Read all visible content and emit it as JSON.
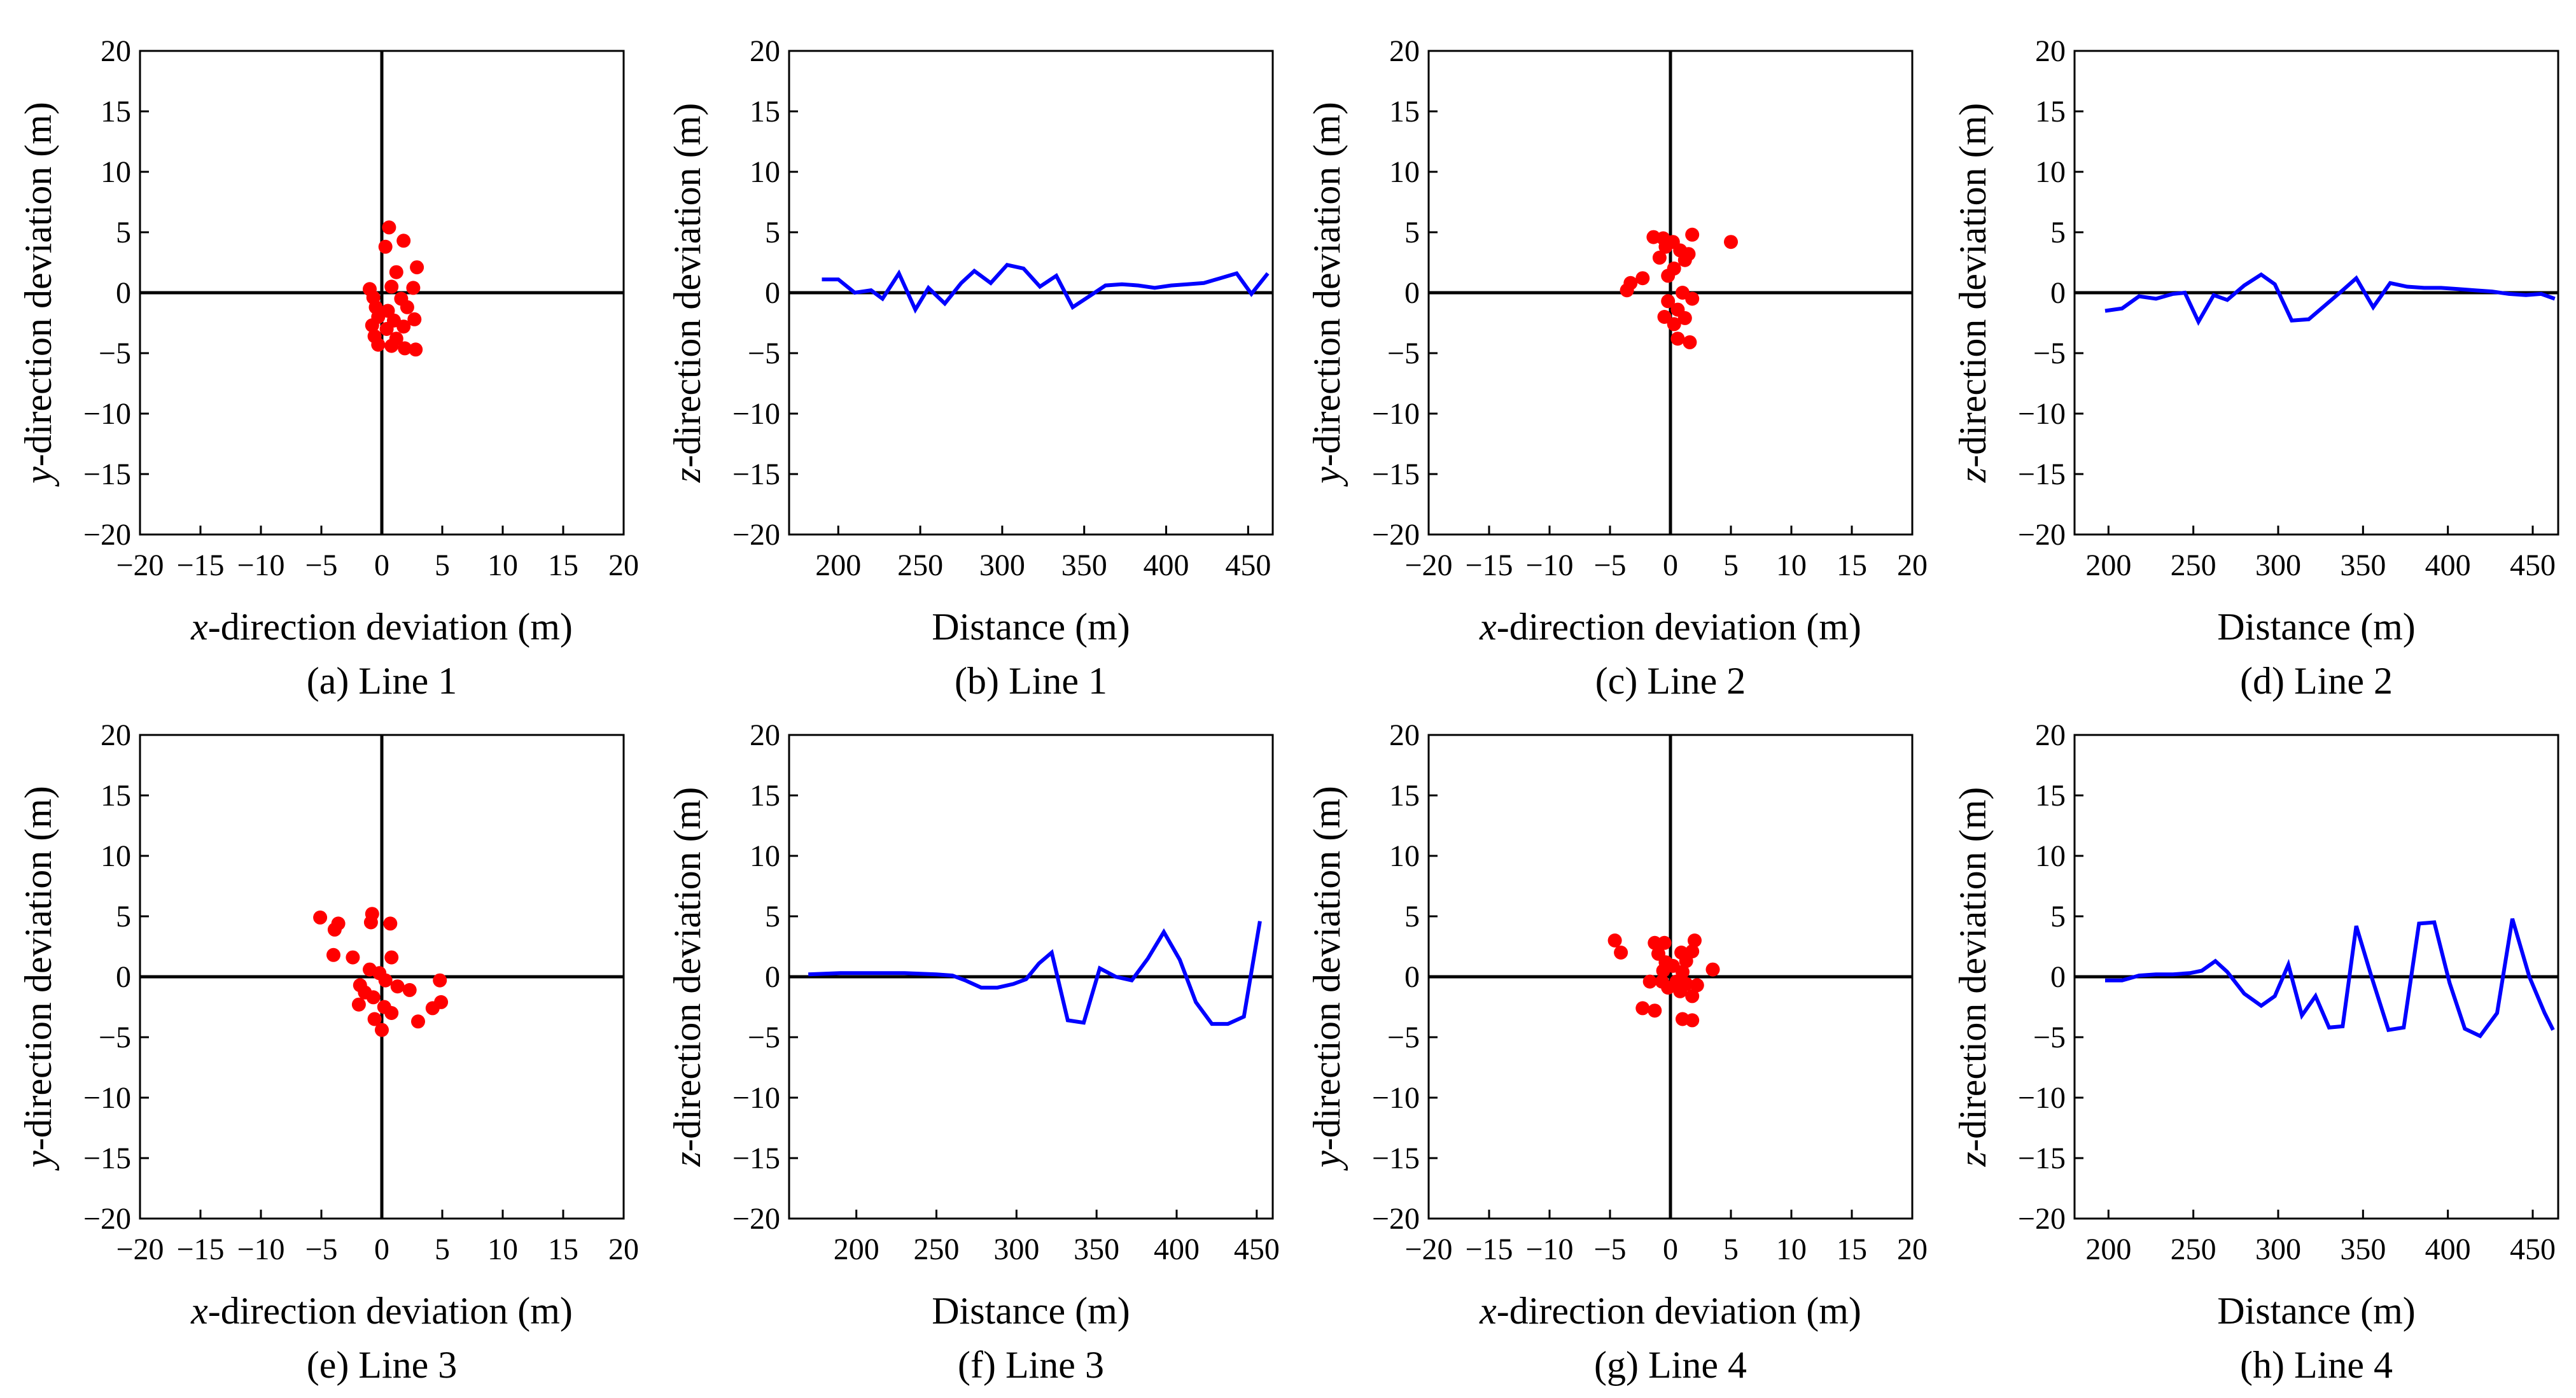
{
  "chart_data": [
    {
      "type": "scatter",
      "caption": "(a) Line 1",
      "xlabel_italic": "x",
      "xlabel_rest": "-direction deviation (m)",
      "ylabel_italic": "y",
      "ylabel_rest": "-direction deviation (m)",
      "xlim": [
        -20,
        20
      ],
      "ylim": [
        -20,
        20
      ],
      "xticks": [
        -20,
        -15,
        -10,
        -5,
        0,
        5,
        10,
        15,
        20
      ],
      "yticks": [
        -20,
        -15,
        -10,
        -5,
        0,
        5,
        10,
        15,
        20
      ],
      "color": "#ff0000",
      "points": [
        [
          0.6,
          5.4
        ],
        [
          1.8,
          4.3
        ],
        [
          0.3,
          3.8
        ],
        [
          2.9,
          2.1
        ],
        [
          1.2,
          1.7
        ],
        [
          -1.0,
          0.3
        ],
        [
          0.8,
          0.5
        ],
        [
          2.6,
          0.4
        ],
        [
          -0.7,
          -0.4
        ],
        [
          1.6,
          -0.5
        ],
        [
          -0.5,
          -1.2
        ],
        [
          0.5,
          -1.5
        ],
        [
          2.1,
          -1.2
        ],
        [
          -0.3,
          -2.0
        ],
        [
          1.0,
          -2.3
        ],
        [
          2.7,
          -2.2
        ],
        [
          -0.8,
          -2.7
        ],
        [
          0.4,
          -3.0
        ],
        [
          1.8,
          -2.8
        ],
        [
          -0.6,
          -3.6
        ],
        [
          1.2,
          -3.8
        ],
        [
          -0.3,
          -4.3
        ],
        [
          0.8,
          -4.4
        ],
        [
          1.9,
          -4.6
        ],
        [
          2.8,
          -4.7
        ]
      ]
    },
    {
      "type": "line",
      "caption": "(b) Line 1",
      "xlabel": "Distance (m)",
      "ylabel_italic": "z",
      "ylabel_rest": "-direction deviation (m)",
      "xlim": [
        170,
        465
      ],
      "ylim": [
        -20,
        20
      ],
      "xticks": [
        200,
        250,
        300,
        350,
        400,
        450
      ],
      "yticks": [
        -20,
        -15,
        -10,
        -5,
        0,
        5,
        10,
        15,
        20
      ],
      "color": "#0000ff",
      "x": [
        190,
        200,
        210,
        220,
        227,
        237,
        247,
        255,
        265,
        275,
        283,
        293,
        303,
        313,
        323,
        333,
        343,
        353,
        363,
        373,
        383,
        393,
        403,
        413,
        423,
        433,
        443,
        452,
        462
      ],
      "y": [
        1.1,
        1.1,
        0.0,
        0.2,
        -0.5,
        1.6,
        -1.4,
        0.4,
        -0.9,
        0.8,
        1.8,
        0.8,
        2.3,
        2.0,
        0.5,
        1.4,
        -1.2,
        -0.3,
        0.6,
        0.7,
        0.6,
        0.4,
        0.6,
        0.7,
        0.8,
        1.2,
        1.6,
        -0.1,
        1.6
      ]
    },
    {
      "type": "scatter",
      "caption": "(c) Line 2",
      "xlabel_italic": "x",
      "xlabel_rest": "-direction deviation (m)",
      "ylabel_italic": "y",
      "ylabel_rest": "-direction deviation (m)",
      "xlim": [
        -20,
        20
      ],
      "ylim": [
        -20,
        20
      ],
      "xticks": [
        -20,
        -15,
        -10,
        -5,
        0,
        5,
        10,
        15,
        20
      ],
      "yticks": [
        -20,
        -15,
        -10,
        -5,
        0,
        5,
        10,
        15,
        20
      ],
      "color": "#ff0000",
      "points": [
        [
          -1.4,
          4.6
        ],
        [
          -0.6,
          4.5
        ],
        [
          0.2,
          4.2
        ],
        [
          1.8,
          4.8
        ],
        [
          5.0,
          4.2
        ],
        [
          -0.4,
          3.8
        ],
        [
          0.8,
          3.5
        ],
        [
          1.5,
          3.2
        ],
        [
          -0.9,
          2.9
        ],
        [
          1.2,
          2.7
        ],
        [
          0.3,
          2.0
        ],
        [
          -0.2,
          1.4
        ],
        [
          -2.3,
          1.2
        ],
        [
          -3.3,
          0.8
        ],
        [
          -3.6,
          0.2
        ],
        [
          1.0,
          0.0
        ],
        [
          1.8,
          -0.5
        ],
        [
          -0.2,
          -0.7
        ],
        [
          0.6,
          -1.4
        ],
        [
          -0.5,
          -2.0
        ],
        [
          1.2,
          -2.1
        ],
        [
          0.3,
          -2.6
        ],
        [
          0.6,
          -3.8
        ],
        [
          1.6,
          -4.1
        ]
      ]
    },
    {
      "type": "line",
      "caption": "(d) Line 2",
      "xlabel": "Distance (m)",
      "ylabel_italic": "z",
      "ylabel_rest": "-direction deviation (m)",
      "xlim": [
        180,
        465
      ],
      "ylim": [
        -20,
        20
      ],
      "xticks": [
        200,
        250,
        300,
        350,
        400,
        450
      ],
      "yticks": [
        -20,
        -15,
        -10,
        -5,
        0,
        5,
        10,
        15,
        20
      ],
      "color": "#0000ff",
      "x": [
        198,
        208,
        218,
        228,
        238,
        245,
        253,
        262,
        270,
        280,
        290,
        298,
        308,
        318,
        328,
        338,
        346,
        356,
        366,
        376,
        386,
        396,
        406,
        416,
        426,
        436,
        446,
        455,
        463
      ],
      "y": [
        -1.5,
        -1.3,
        -0.3,
        -0.5,
        -0.1,
        0.0,
        -2.4,
        -0.2,
        -0.6,
        0.6,
        1.5,
        0.7,
        -2.3,
        -2.2,
        -1.0,
        0.2,
        1.2,
        -1.2,
        0.8,
        0.5,
        0.4,
        0.4,
        0.3,
        0.2,
        0.1,
        -0.1,
        -0.2,
        -0.1,
        -0.5
      ]
    },
    {
      "type": "scatter",
      "caption": "(e) Line 3",
      "xlabel_italic": "x",
      "xlabel_rest": "-direction deviation (m)",
      "ylabel_italic": "y",
      "ylabel_rest": "-direction deviation (m)",
      "xlim": [
        -20,
        20
      ],
      "ylim": [
        -20,
        20
      ],
      "xticks": [
        -20,
        -15,
        -10,
        -5,
        0,
        5,
        10,
        15,
        20
      ],
      "yticks": [
        -20,
        -15,
        -10,
        -5,
        0,
        5,
        10,
        15,
        20
      ],
      "color": "#ff0000",
      "points": [
        [
          -5.1,
          4.9
        ],
        [
          -3.6,
          4.4
        ],
        [
          -0.8,
          5.2
        ],
        [
          -3.9,
          3.9
        ],
        [
          -0.9,
          4.5
        ],
        [
          0.7,
          4.4
        ],
        [
          -4.0,
          1.8
        ],
        [
          -2.4,
          1.6
        ],
        [
          0.8,
          1.6
        ],
        [
          -1.0,
          0.6
        ],
        [
          -0.2,
          0.3
        ],
        [
          0.3,
          -0.3
        ],
        [
          4.8,
          -0.3
        ],
        [
          -1.8,
          -0.7
        ],
        [
          1.3,
          -0.8
        ],
        [
          -1.4,
          -1.3
        ],
        [
          2.3,
          -1.1
        ],
        [
          -0.7,
          -1.7
        ],
        [
          4.9,
          -2.1
        ],
        [
          -1.9,
          -2.3
        ],
        [
          0.2,
          -2.5
        ],
        [
          0.8,
          -3.0
        ],
        [
          4.2,
          -2.6
        ],
        [
          -0.6,
          -3.5
        ],
        [
          3.0,
          -3.7
        ],
        [
          0.0,
          -4.4
        ]
      ]
    },
    {
      "type": "line",
      "caption": "(f) Line 3",
      "xlabel": "Distance (m)",
      "ylabel_italic": "z",
      "ylabel_rest": "-direction deviation (m)",
      "xlim": [
        158,
        460
      ],
      "ylim": [
        -20,
        20
      ],
      "xticks": [
        200,
        250,
        300,
        350,
        400,
        450
      ],
      "yticks": [
        -20,
        -15,
        -10,
        -5,
        0,
        5,
        10,
        15,
        20
      ],
      "color": "#0000ff",
      "x": [
        170,
        190,
        210,
        230,
        250,
        260,
        268,
        278,
        288,
        298,
        306,
        314,
        322,
        332,
        342,
        352,
        362,
        372,
        382,
        392,
        402,
        412,
        422,
        432,
        442,
        452
      ],
      "y": [
        0.2,
        0.3,
        0.3,
        0.3,
        0.2,
        0.1,
        -0.3,
        -0.9,
        -0.9,
        -0.6,
        -0.2,
        1.1,
        2.0,
        -3.6,
        -3.8,
        0.7,
        0.0,
        -0.3,
        1.5,
        3.7,
        1.4,
        -2.1,
        -3.9,
        -3.9,
        -3.3,
        4.6
      ]
    },
    {
      "type": "scatter",
      "caption": "(g) Line 4",
      "xlabel_italic": "x",
      "xlabel_rest": "-direction deviation (m)",
      "ylabel_italic": "y",
      "ylabel_rest": "-direction deviation (m)",
      "xlim": [
        -20,
        20
      ],
      "ylim": [
        -20,
        20
      ],
      "xticks": [
        -20,
        -15,
        -10,
        -5,
        0,
        5,
        10,
        15,
        20
      ],
      "yticks": [
        -20,
        -15,
        -10,
        -5,
        0,
        5,
        10,
        15,
        20
      ],
      "color": "#ff0000",
      "points": [
        [
          -4.6,
          3.0
        ],
        [
          -4.1,
          2.0
        ],
        [
          -1.3,
          2.8
        ],
        [
          -0.5,
          2.8
        ],
        [
          2.0,
          3.0
        ],
        [
          -1.0,
          1.9
        ],
        [
          0.9,
          2.0
        ],
        [
          1.8,
          2.1
        ],
        [
          -0.4,
          1.2
        ],
        [
          1.3,
          1.3
        ],
        [
          0.2,
          0.9
        ],
        [
          -0.6,
          0.5
        ],
        [
          1.0,
          0.4
        ],
        [
          3.5,
          0.6
        ],
        [
          -1.7,
          -0.4
        ],
        [
          -0.7,
          -0.4
        ],
        [
          0.5,
          -0.4
        ],
        [
          1.3,
          -0.6
        ],
        [
          2.2,
          -0.7
        ],
        [
          -0.2,
          -0.9
        ],
        [
          0.8,
          -1.2
        ],
        [
          1.8,
          -1.6
        ],
        [
          -2.3,
          -2.6
        ],
        [
          -1.3,
          -2.8
        ],
        [
          1.0,
          -3.5
        ],
        [
          1.8,
          -3.6
        ]
      ]
    },
    {
      "type": "line",
      "caption": "(h) Line 4",
      "xlabel": "Distance (m)",
      "ylabel_italic": "z",
      "ylabel_rest": "-direction deviation (m)",
      "xlim": [
        180,
        465
      ],
      "ylim": [
        -20,
        20
      ],
      "xticks": [
        200,
        250,
        300,
        350,
        400,
        450
      ],
      "yticks": [
        -20,
        -15,
        -10,
        -5,
        0,
        5,
        10,
        15,
        20
      ],
      "color": "#0000ff",
      "x": [
        198,
        208,
        218,
        228,
        238,
        248,
        255,
        263,
        270,
        280,
        290,
        298,
        306,
        314,
        322,
        330,
        338,
        346,
        355,
        365,
        374,
        383,
        392,
        401,
        410,
        419,
        429,
        438,
        448,
        457,
        462
      ],
      "y": [
        -0.3,
        -0.3,
        0.1,
        0.2,
        0.2,
        0.3,
        0.5,
        1.3,
        0.4,
        -1.4,
        -2.4,
        -1.6,
        1.0,
        -3.2,
        -1.6,
        -4.2,
        -4.1,
        4.2,
        0.0,
        -4.4,
        -4.2,
        4.4,
        4.5,
        -0.5,
        -4.3,
        -4.9,
        -3.0,
        4.8,
        0.0,
        -3.0,
        -4.4
      ]
    }
  ]
}
